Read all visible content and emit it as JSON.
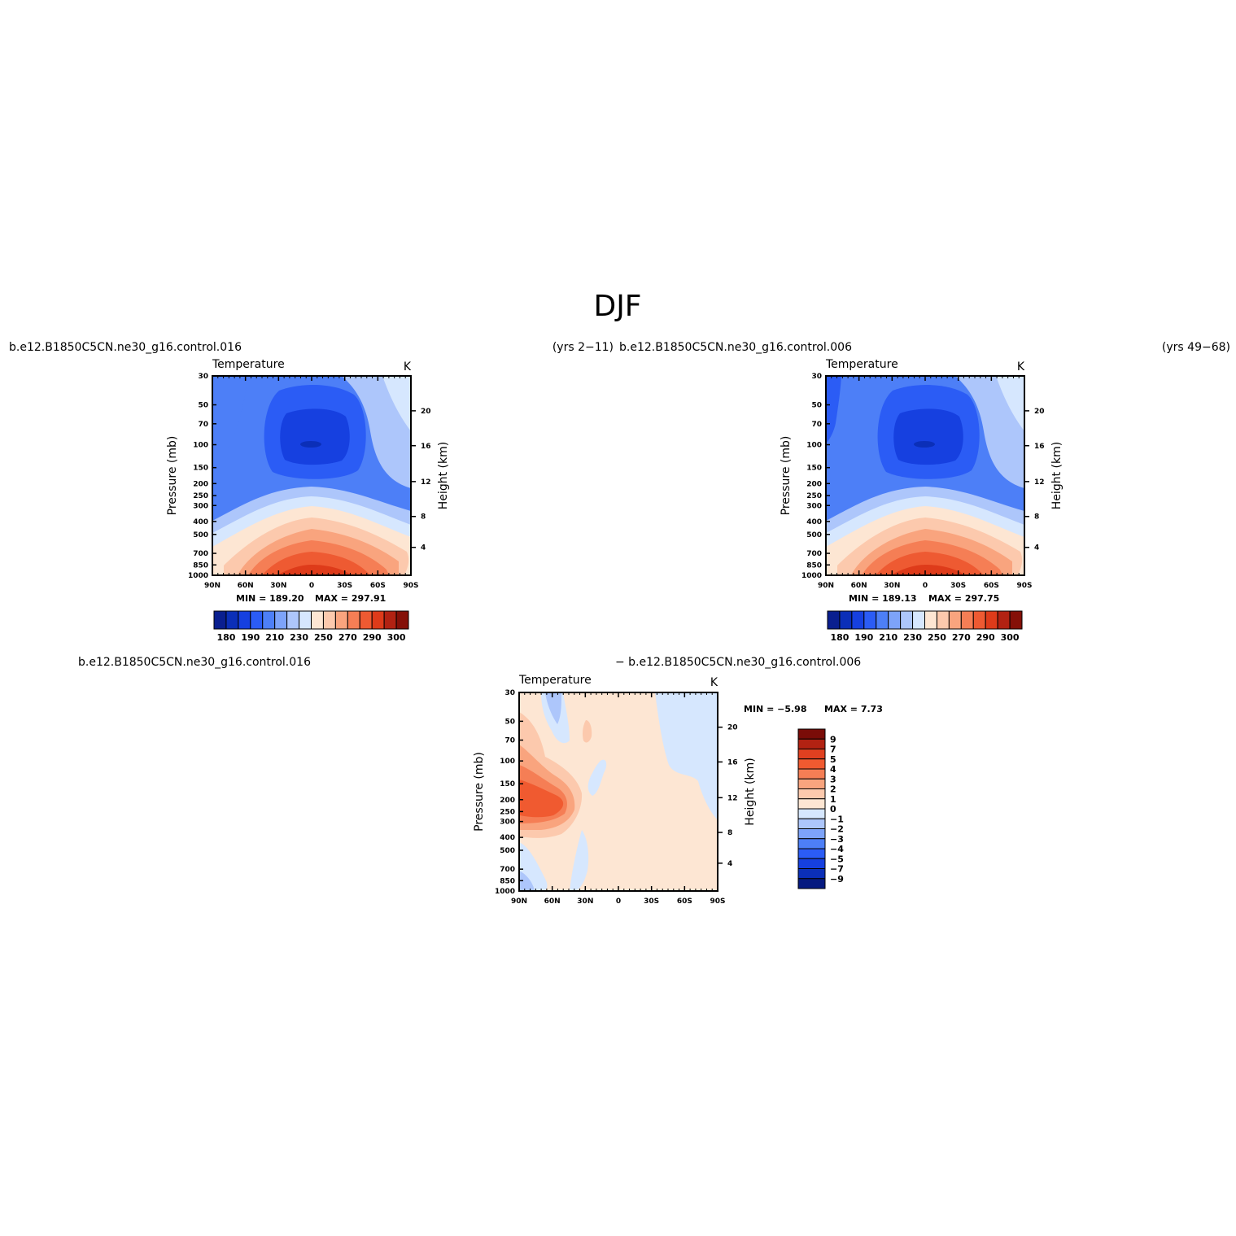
{
  "figure": {
    "title": "DJF"
  },
  "headers": {
    "row1_left_case": "b.e12.B1850C5CN.ne30_g16.control.016",
    "row1_left_years": "(yrs 2−11)",
    "row1_right_case": "b.e12.B1850C5CN.ne30_g16.control.006",
    "row1_right_years": "(yrs 49−68)",
    "row2_left_case": "b.e12.B1850C5CN.ne30_g16.control.016",
    "row2_right_case": "− b.e12.B1850C5CN.ne30_g16.control.006"
  },
  "axes": {
    "x_ticks": [
      "90N",
      "60N",
      "30N",
      "0",
      "30S",
      "60S",
      "90S"
    ],
    "y_ticks": [
      "30",
      "50",
      "70",
      "100",
      "150",
      "200",
      "250",
      "300",
      "400",
      "500",
      "700",
      "850",
      "1000"
    ],
    "y2_ticks": [
      "20",
      "16",
      "12",
      "8",
      "4"
    ],
    "ylabel": "Pressure (mb)",
    "y2label": "Height (km)"
  },
  "chart_data": [
    {
      "type": "heatmap",
      "panel": "case-016",
      "title": "Temperature",
      "units": "K",
      "min_label": "MIN = 189.20",
      "max_label": "MAX = 297.91",
      "min": 189.2,
      "max": 297.91,
      "colorbar_labels": [
        "180",
        "190",
        "210",
        "230",
        "250",
        "270",
        "290",
        "300"
      ],
      "colorbar_orientation": "horizontal"
    },
    {
      "type": "heatmap",
      "panel": "case-006",
      "title": "Temperature",
      "units": "K",
      "min_label": "MIN = 189.13",
      "max_label": "MAX = 297.75",
      "min": 189.13,
      "max": 297.75,
      "colorbar_labels": [
        "180",
        "190",
        "210",
        "230",
        "250",
        "270",
        "290",
        "300"
      ],
      "colorbar_orientation": "horizontal"
    },
    {
      "type": "heatmap",
      "panel": "difference",
      "title": "Temperature",
      "units": "K",
      "min_label": "MIN =   −5.98",
      "max_label": "MAX =    7.73",
      "min": -5.98,
      "max": 7.73,
      "colorbar_labels": [
        "9",
        "7",
        "5",
        "4",
        "3",
        "2",
        "1",
        "0",
        "−1",
        "−2",
        "−3",
        "−4",
        "−5",
        "−7",
        "−9"
      ],
      "colorbar_orientation": "vertical"
    }
  ],
  "colors": {
    "t_scale": [
      "#0a1f8f",
      "#0b2fb8",
      "#1640e0",
      "#2b5cf5",
      "#4d7ff7",
      "#7da3f9",
      "#adc6fb",
      "#d6e7fe",
      "#fde6d3",
      "#fcc9ad",
      "#f9a47e",
      "#f57e55",
      "#ee5a32",
      "#de3b1a",
      "#b22212",
      "#851008"
    ],
    "diff_scale": [
      "#7a0c08",
      "#b22212",
      "#e04020",
      "#f05a30",
      "#f57e55",
      "#f9a47e",
      "#fcc9ad",
      "#fde6d3",
      "#d6e7fe",
      "#adc6fb",
      "#7da3f9",
      "#4d7ff7",
      "#2b5cf5",
      "#1640e0",
      "#0b2fb8",
      "#061a80"
    ]
  }
}
